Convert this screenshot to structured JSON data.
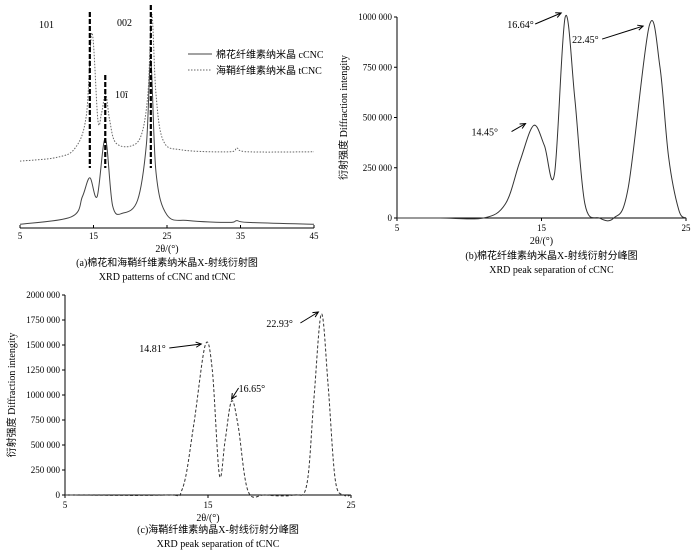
{
  "chart_data": [
    {
      "id": "a",
      "type": "line",
      "caption_line1": "(a)棉花和海鞘纤维素纳米晶X-射线衍射图",
      "caption_line2": "XRD patterns of cCNC and tCNC",
      "xlabel": "2θ/(°)",
      "xlim": [
        5,
        45
      ],
      "xticks": [
        "5",
        "15",
        "25",
        "35",
        "45"
      ],
      "peak_labels": [
        "101",
        "002",
        "10ī"
      ],
      "peak_positions": [
        14.5,
        16.6,
        22.8
      ],
      "series": [
        {
          "name": "棉花纤维素纳米晶 cCNC",
          "style": "solid",
          "x": [
            5,
            12,
            13.5,
            14.5,
            15.5,
            16.6,
            17.6,
            19,
            21,
            22.2,
            22.8,
            23.5,
            25,
            28,
            33.5,
            34.5,
            36,
            45
          ],
          "y": [
            0.02,
            0.06,
            0.17,
            0.27,
            0.17,
            0.48,
            0.12,
            0.08,
            0.15,
            0.45,
            0.9,
            0.3,
            0.07,
            0.04,
            0.03,
            0.04,
            0.03,
            0.02
          ]
        },
        {
          "name": "海鞘纤维素纳米晶 tCNC",
          "style": "dotted",
          "x": [
            5,
            10,
            12.5,
            14,
            14.8,
            15.6,
            16.1,
            16.65,
            17.2,
            18,
            20,
            21.5,
            22.4,
            22.93,
            23.5,
            24.5,
            27,
            33.5,
            34.5,
            36,
            45
          ],
          "y": [
            0.36,
            0.38,
            0.43,
            0.6,
            1.05,
            0.58,
            0.62,
            0.72,
            0.58,
            0.46,
            0.44,
            0.5,
            0.72,
            1.15,
            0.72,
            0.47,
            0.42,
            0.41,
            0.43,
            0.41,
            0.41
          ]
        }
      ]
    },
    {
      "id": "b",
      "type": "line",
      "caption_line1": "(b)棉花纤维素纳米晶X-射线衍射分峰图",
      "caption_line2": "XRD peak separation of cCNC",
      "xlabel": "2θ/(°)",
      "ylabel": "衍射强度 Diffraction intengity",
      "xlim": [
        5,
        25
      ],
      "ylim": [
        0,
        1000000
      ],
      "xticks": [
        "5",
        "15",
        "25"
      ],
      "yticks": [
        "0",
        "250 000",
        "500 000",
        "750 000",
        "1000 000"
      ],
      "peaks": [
        {
          "center": 14.45,
          "height": 460000,
          "label": "14.45°"
        },
        {
          "center": 16.64,
          "height": 1000000,
          "label": "16.64°"
        },
        {
          "center": 22.45,
          "height": 955000,
          "label": "22.45°"
        }
      ],
      "series": [
        {
          "style": "solid",
          "x": [
            5,
            8,
            11,
            12.5,
            13.5,
            14.45,
            15.2,
            15.9,
            16.64,
            17.3,
            18,
            19,
            20,
            21,
            22.45,
            23.2,
            23.8,
            24.5,
            25
          ],
          "y": [
            0,
            0,
            0,
            70000,
            280000,
            460000,
            360000,
            220000,
            1000000,
            600000,
            70000,
            0,
            0,
            150000,
            955000,
            750000,
            300000,
            40000,
            0
          ]
        }
      ]
    },
    {
      "id": "c",
      "type": "line",
      "caption_line1": "(c)海鞘纤维素纳晶X-射线衍射分峰图",
      "caption_line2": "XRD peak separation of tCNC",
      "xlabel": "2θ/(°)",
      "ylabel": "衍射强度 Diffraction intengity",
      "xlim": [
        5,
        25
      ],
      "ylim": [
        0,
        2000000
      ],
      "xticks": [
        "5",
        "15",
        "25"
      ],
      "yticks": [
        "0",
        "250 000",
        "500 000",
        "750 000",
        "1000 000",
        "1250 000",
        "1500 000",
        "1750 000",
        "2000 000"
      ],
      "peaks": [
        {
          "center": 14.81,
          "height": 1500000,
          "label": "14.81°"
        },
        {
          "center": 16.65,
          "height": 940000,
          "label": "16.65°"
        },
        {
          "center": 22.93,
          "height": 1810000,
          "label": "22.93°"
        }
      ],
      "series": [
        {
          "style": "dashed",
          "x": [
            5,
            12,
            13.2,
            14,
            14.81,
            15.3,
            15.8,
            16.2,
            16.65,
            17.1,
            17.8,
            19,
            21,
            21.9,
            22.4,
            22.93,
            23.4,
            23.9,
            24.5,
            25
          ],
          "y": [
            0,
            0,
            60000,
            700000,
            1500000,
            1250000,
            200000,
            550000,
            940000,
            700000,
            40000,
            0,
            0,
            100000,
            950000,
            1810000,
            1100000,
            150000,
            0,
            0
          ]
        }
      ]
    }
  ]
}
